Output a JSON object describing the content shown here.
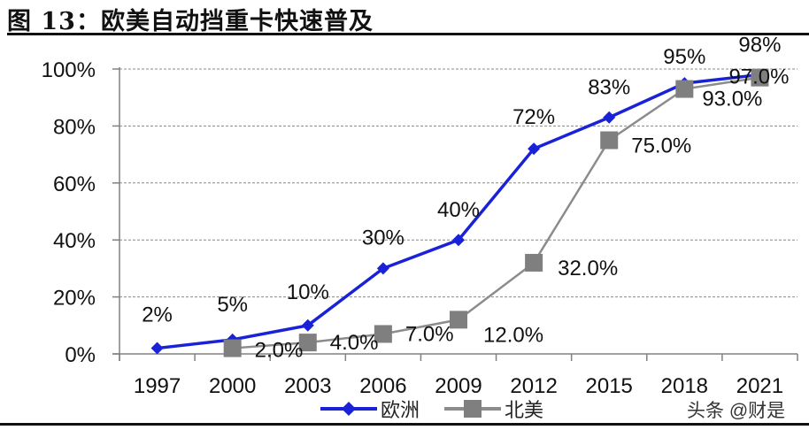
{
  "title": "图 13：欧美自动挡重卡快速普及",
  "watermark": "头条 @财是",
  "colors": {
    "europe": "#1a22d8",
    "north_america_line": "#8c8c8c",
    "north_america_marker": "#7f7f7f",
    "grid": "#888888",
    "axis": "#808080"
  },
  "legend": {
    "europe": "欧洲",
    "north_america": "北美"
  },
  "chart_data": {
    "type": "line",
    "title": "图 13：欧美自动挡重卡快速普及",
    "xlabel": "",
    "ylabel": "",
    "categories": [
      "1997",
      "2000",
      "2003",
      "2006",
      "2009",
      "2012",
      "2015",
      "2018",
      "2021"
    ],
    "y_ticks": [
      "0%",
      "20%",
      "40%",
      "60%",
      "80%",
      "100%"
    ],
    "ylim": [
      0,
      100
    ],
    "grid": true,
    "legend_position": "bottom",
    "series": [
      {
        "name": "欧洲",
        "marker": "diamond",
        "values": [
          2,
          5,
          10,
          30,
          40,
          72,
          83,
          95,
          98
        ],
        "labels": [
          "2%",
          "5%",
          "10%",
          "30%",
          "40%",
          "72%",
          "83%",
          "95%",
          "98%"
        ]
      },
      {
        "name": "北美",
        "marker": "square",
        "values": [
          null,
          2.0,
          4.0,
          7.0,
          12.0,
          32.0,
          75.0,
          93.0,
          97.0
        ],
        "labels": [
          "",
          "2.0%",
          "4.0%",
          "7.0%",
          "12.0%",
          "32.0%",
          "75.0%",
          "93.0%",
          "97.0%"
        ]
      }
    ]
  }
}
